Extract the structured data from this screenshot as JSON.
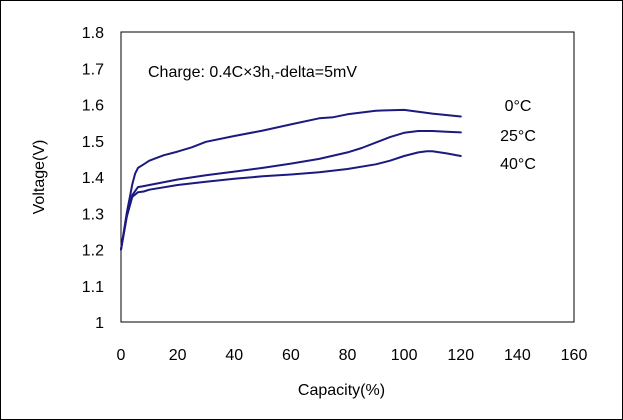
{
  "chart_data": {
    "type": "line",
    "title": "",
    "xlabel": "Capacity(%)",
    "ylabel": "Voltage(V)",
    "xlim": [
      0,
      160
    ],
    "ylim": [
      1.0,
      1.8
    ],
    "xticks": [
      0,
      20,
      40,
      60,
      80,
      100,
      120,
      140,
      160
    ],
    "yticks": [
      1,
      1.1,
      1.2,
      1.3,
      1.4,
      1.5,
      1.6,
      1.7,
      1.8
    ],
    "ytick_labels": [
      "1",
      "1.1",
      "1.2",
      "1.3",
      "1.4",
      "1.5",
      "1.6",
      "1.7",
      "1.8"
    ],
    "grid": true,
    "annotation": "Charge: 0.4C×3h,-delta=5mV",
    "line_color": "#1a1a80",
    "series": [
      {
        "name": "0°C",
        "x": [
          0,
          2,
          4,
          5,
          6,
          8,
          10,
          15,
          20,
          25,
          30,
          40,
          50,
          60,
          70,
          75,
          80,
          90,
          100,
          110,
          120
        ],
        "y": [
          1.2,
          1.3,
          1.38,
          1.41,
          1.425,
          1.435,
          1.445,
          1.46,
          1.47,
          1.482,
          1.497,
          1.513,
          1.528,
          1.545,
          1.562,
          1.565,
          1.573,
          1.583,
          1.585,
          1.575,
          1.567
        ]
      },
      {
        "name": "25°C",
        "x": [
          0,
          2,
          4,
          6,
          8,
          10,
          20,
          30,
          40,
          50,
          60,
          70,
          80,
          85,
          90,
          95,
          100,
          105,
          110,
          115,
          120
        ],
        "y": [
          1.2,
          1.29,
          1.35,
          1.372,
          1.375,
          1.378,
          1.393,
          1.405,
          1.415,
          1.425,
          1.437,
          1.45,
          1.468,
          1.48,
          1.495,
          1.51,
          1.522,
          1.527,
          1.527,
          1.525,
          1.523
        ]
      },
      {
        "name": "40°C",
        "x": [
          0,
          2,
          4,
          6,
          8,
          10,
          20,
          30,
          40,
          50,
          60,
          70,
          80,
          90,
          95,
          100,
          105,
          108,
          110,
          115,
          120
        ],
        "y": [
          1.2,
          1.29,
          1.345,
          1.358,
          1.36,
          1.365,
          1.378,
          1.387,
          1.395,
          1.402,
          1.407,
          1.413,
          1.422,
          1.435,
          1.445,
          1.458,
          1.468,
          1.471,
          1.471,
          1.465,
          1.458
        ]
      }
    ]
  }
}
